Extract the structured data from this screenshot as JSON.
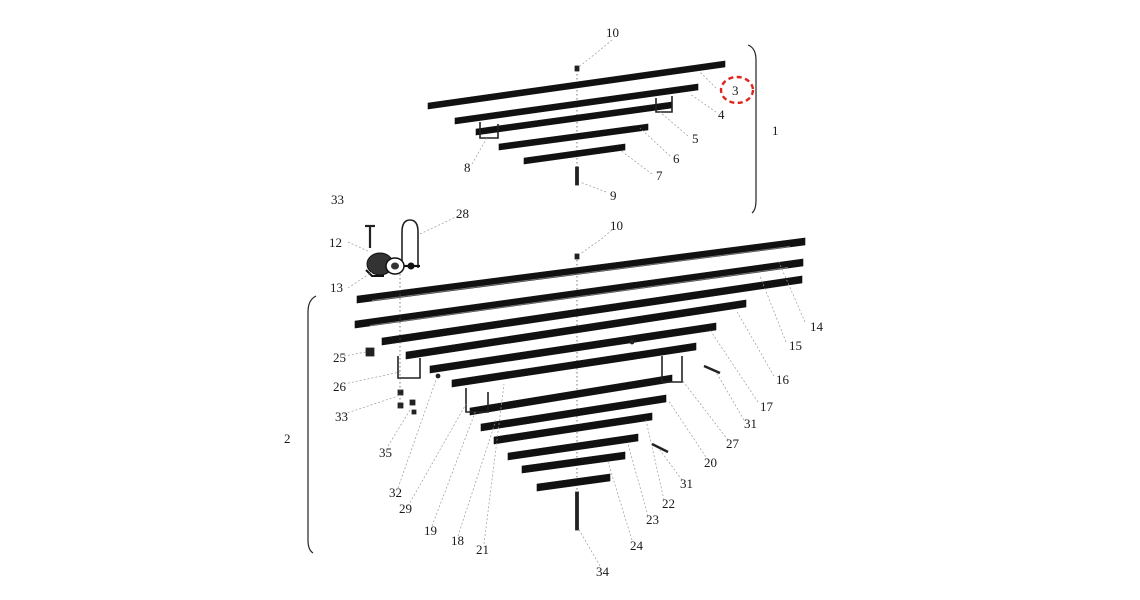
{
  "diagram": {
    "labels": {
      "n1": "1",
      "n2": "2",
      "n3": "3",
      "n4": "4",
      "n5": "5",
      "n6": "6",
      "n7": "7",
      "n8": "8",
      "n9": "9",
      "n10a": "10",
      "n10b": "10",
      "n12": "12",
      "n13": "13",
      "n14": "14",
      "n15": "15",
      "n16": "16",
      "n17": "17",
      "n18": "18",
      "n19": "19",
      "n20": "20",
      "n21": "21",
      "n22": "22",
      "n23": "23",
      "n24": "24",
      "n25": "25",
      "n26": "26",
      "n27": "27",
      "n28": "28",
      "n29": "29",
      "n31a": "31",
      "n31b": "31",
      "n32": "32",
      "n33a": "33",
      "n33b": "33",
      "n34": "34",
      "n35": "35"
    },
    "highlight": {
      "label": "n3",
      "color": "#e0241c"
    }
  }
}
